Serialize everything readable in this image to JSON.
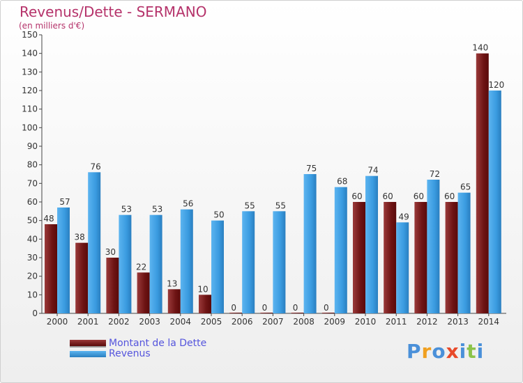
{
  "header": {
    "title": "Revenus/Dette - SERMANO",
    "subtitle": "(en milliers d'€)"
  },
  "chart_data": {
    "type": "bar",
    "title": "Revenus/Dette - SERMANO",
    "subtitle": "(en milliers d'€)",
    "categories": [
      "2000",
      "2001",
      "2002",
      "2003",
      "2004",
      "2005",
      "2006",
      "2007",
      "2008",
      "2009",
      "2010",
      "2011",
      "2012",
      "2013",
      "2014"
    ],
    "series": [
      {
        "name": "Montant de la Dette",
        "values": [
          48,
          38,
          30,
          22,
          13,
          10,
          0,
          0,
          0,
          0,
          60,
          60,
          60,
          60,
          140
        ],
        "color": "#7b1f1f"
      },
      {
        "name": "Revenus",
        "values": [
          57,
          76,
          53,
          53,
          56,
          50,
          55,
          55,
          75,
          68,
          74,
          49,
          72,
          65,
          120
        ],
        "color": "#3a9be0"
      }
    ],
    "ylim": [
      0,
      150
    ],
    "yticks": [
      0,
      10,
      20,
      30,
      40,
      50,
      60,
      70,
      80,
      90,
      100,
      110,
      120,
      130,
      140,
      150
    ],
    "grid": false,
    "legend_position": "bottom-left",
    "data_labels": true
  },
  "legend": {
    "items": [
      {
        "label": "Montant de la Dette",
        "color": "#7b1f1f"
      },
      {
        "label": "Revenus",
        "color": "#3a9be0"
      }
    ]
  },
  "logo": {
    "text": "Proxiti",
    "letters": [
      {
        "ch": "P",
        "color": "#4a90d9"
      },
      {
        "ch": "r",
        "color": "#f0a020"
      },
      {
        "ch": "o",
        "color": "#4a90d9"
      },
      {
        "ch": "x",
        "color": "#e84a2a"
      },
      {
        "ch": "i",
        "color": "#4a90d9"
      },
      {
        "ch": "t",
        "color": "#8bc34a"
      },
      {
        "ch": "i",
        "color": "#4a90d9"
      }
    ]
  }
}
